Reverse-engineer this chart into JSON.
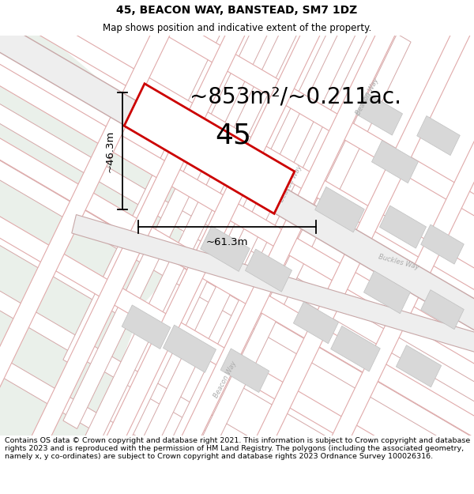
{
  "title": "45, BEACON WAY, BANSTEAD, SM7 1DZ",
  "subtitle": "Map shows position and indicative extent of the property.",
  "area_text": "~853m²/~0.211ac.",
  "plot_number": "45",
  "dim_width": "~61.3m",
  "dim_height": "~46.3m",
  "map_bg": "#f7f7f5",
  "open_space_color": "#eaf0ea",
  "road_line_color": "#e8bbbb",
  "road_fill_color": "#e8e4e4",
  "road_border_color": "#d4a8a8",
  "building_fill": "#d8d8d8",
  "building_edge": "#c0c0c0",
  "plot_outline_color": "#cc0000",
  "road_label_color": "#aaaaaa",
  "footer_text": "Contains OS data © Crown copyright and database right 2021. This information is subject to Crown copyright and database rights 2023 and is reproduced with the permission of HM Land Registry. The polygons (including the associated geometry, namely x, y co-ordinates) are subject to Crown copyright and database rights 2023 Ordnance Survey 100026316.",
  "footer_fontsize": 6.8,
  "title_fontsize": 10,
  "subtitle_fontsize": 8.5,
  "area_fontsize": 20,
  "plot_num_fontsize": 26,
  "dim_fontsize": 9.5
}
